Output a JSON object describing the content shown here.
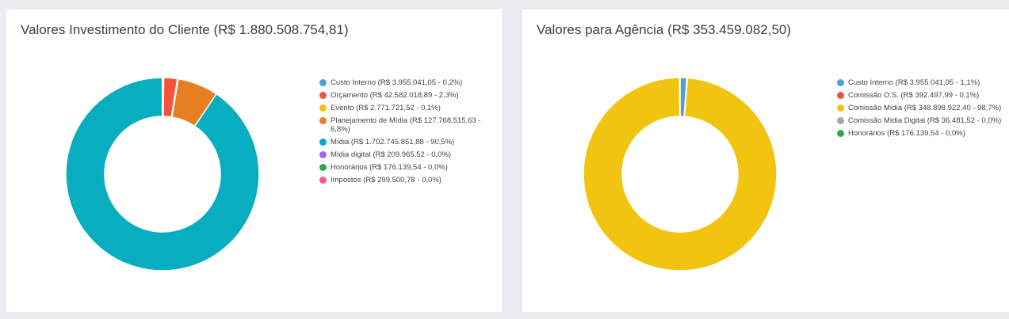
{
  "chart_data": [
    {
      "type": "pie",
      "title": "Valores Investimento do Cliente (R$ 1.880.508.754,81)",
      "legend_position": "right",
      "donut": true,
      "slices": [
        {
          "label": "Custo Interno (R$ 3.955.041,05 - 0,2%)",
          "value": 3955041.05,
          "color": "#4e9fd6"
        },
        {
          "label": "Orçamento (R$ 42.582.018,89 - 2,3%)",
          "value": 42582018.89,
          "color": "#f5523c"
        },
        {
          "label": "Evento (R$ 2.771.721,52 - 0,1%)",
          "value": 2771721.52,
          "color": "#f1c40f"
        },
        {
          "label": "Planejamento de Mídia (R$ 127.768.515,63 - 6,8%)",
          "value": 127768515.63,
          "color": "#e67e22"
        },
        {
          "label": "Mídia (R$ 1.702.745.851,88 - 90,5%)",
          "value": 1702745851.88,
          "color": "#08adbf"
        },
        {
          "label": "Mídia digital (R$ 209.965,52 - 0,0%)",
          "value": 209965.52,
          "color": "#9b6bdf"
        },
        {
          "label": "Honorários (R$ 176.139,54 - 0,0%)",
          "value": 176139.54,
          "color": "#27ae4a"
        },
        {
          "label": "Impostos (R$ 299.500,78 - 0,0%)",
          "value": 299500.78,
          "color": "#f55a8a"
        }
      ]
    },
    {
      "type": "pie",
      "title": "Valores para Agência (R$ 353.459.082,50)",
      "legend_position": "right",
      "donut": true,
      "slices": [
        {
          "label": "Custo Interno (R$ 3.955.041,05 - 1,1%)",
          "value": 3955041.05,
          "color": "#4e9fd6"
        },
        {
          "label": "Comissão O.S. (R$ 392.497,99 - 0,1%)",
          "value": 392497.99,
          "color": "#f5523c"
        },
        {
          "label": "Comissão Mídia (R$ 348.898.922,40 - 98,7%)",
          "value": 348898922.4,
          "color": "#f1c40f"
        },
        {
          "label": "Comissão Mídia Digital (R$ 36.481,52 - 0,0%)",
          "value": 36481.52,
          "color": "#a9a9a9"
        },
        {
          "label": "Honorários (R$ 176.139,54 - 0,0%)",
          "value": 176139.54,
          "color": "#27ae4a"
        }
      ]
    }
  ]
}
